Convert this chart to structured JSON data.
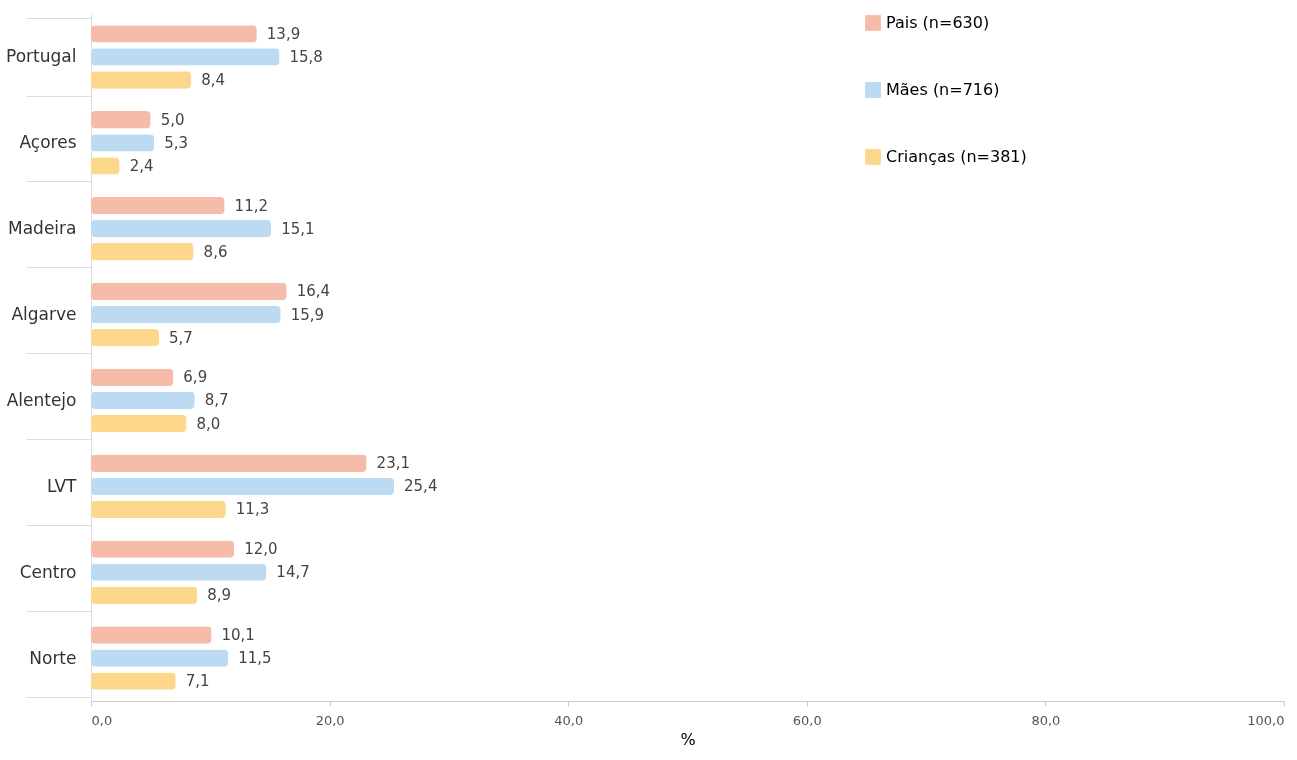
{
  "chart_data": {
    "type": "bar",
    "orientation": "horizontal",
    "xlabel": "%",
    "categories": [
      "Portugal",
      "Açores",
      "Madeira",
      "Algarve",
      "Alentejo",
      "LVT",
      "Centro",
      "Norte"
    ],
    "series": [
      {
        "name": "Pais (n=630)",
        "color": "#f6bcaa",
        "values": [
          13.9,
          5.0,
          11.2,
          16.4,
          6.9,
          23.1,
          12.0,
          10.1
        ],
        "value_labels": [
          "13,9",
          "5,0",
          "11,2",
          "16,4",
          "6,9",
          "23,1",
          "12,0",
          "10,1"
        ]
      },
      {
        "name": "Mães (n=716)",
        "color": "#bcdaf2",
        "values": [
          15.8,
          5.3,
          15.1,
          15.9,
          8.7,
          25.4,
          14.7,
          11.5
        ],
        "value_labels": [
          "15,8",
          "5,3",
          "15,1",
          "15,9",
          "8,7",
          "25,4",
          "14,7",
          "11,5"
        ]
      },
      {
        "name": "Crianças (n=381)",
        "color": "#fdd88c",
        "values": [
          8.4,
          2.4,
          8.6,
          5.7,
          8.0,
          11.3,
          8.9,
          7.1
        ],
        "value_labels": [
          "8,4",
          "2,4",
          "8,6",
          "5,7",
          "8,0",
          "11,3",
          "8,9",
          "7,1"
        ]
      }
    ],
    "xlim": [
      0,
      100
    ],
    "xticks": [
      {
        "value": 0,
        "label": "0,0"
      },
      {
        "value": 20,
        "label": "20,0"
      },
      {
        "value": 40,
        "label": "40,0"
      },
      {
        "value": 60,
        "label": "60,0"
      },
      {
        "value": 80,
        "label": "80,0"
      },
      {
        "value": 100,
        "label": "100,0"
      }
    ],
    "grid": false,
    "legend": "right"
  }
}
